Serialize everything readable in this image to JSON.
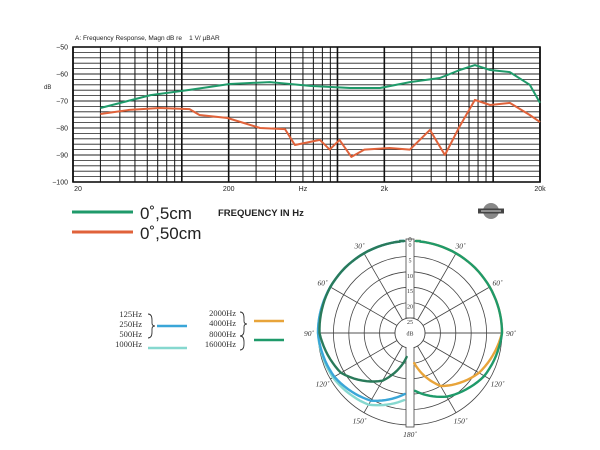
{
  "chart_data": [
    {
      "type": "line",
      "title": "A: Frequency Response, Magn dB re    1 V/ µBAR",
      "xlabel": "FREQUENCY IN Hz",
      "ylabel": "dB",
      "xscale": "log",
      "xlim": [
        20,
        20000
      ],
      "ylim": [
        -100,
        -50
      ],
      "grid": true,
      "x_tick_labels": [
        {
          "value": 20,
          "label": "20"
        },
        {
          "value": 200,
          "label": "200"
        },
        {
          "value": 600,
          "label": "Hz"
        },
        {
          "value": 2000,
          "label": "2k"
        },
        {
          "value": 20000,
          "label": "20k"
        }
      ],
      "y_ticks": [
        -50,
        -60,
        -70,
        -80,
        -90,
        -100
      ],
      "legend_placement": "bottom-left",
      "series": [
        {
          "name": "0˚,5cm",
          "color": "#1f9a6a",
          "points": [
            [
              30,
              -72.6
            ],
            [
              63,
              -67.8
            ],
            [
              112,
              -65.9
            ],
            [
              203,
              -63.7
            ],
            [
              368,
              -63
            ],
            [
              667,
              -64.4
            ],
            [
              1206,
              -65.2
            ],
            [
              1876,
              -65.2
            ],
            [
              2918,
              -63
            ],
            [
              4541,
              -61.5
            ],
            [
              6104,
              -58.5
            ],
            [
              7640,
              -56.7
            ],
            [
              9560,
              -58.5
            ],
            [
              12800,
              -59.3
            ],
            [
              17200,
              -64
            ],
            [
              20000,
              -70.7
            ]
          ]
        },
        {
          "name": "0˚,50cm",
          "color": "#e0623a",
          "points": [
            [
              30,
              -74.8
            ],
            [
              46,
              -73.3
            ],
            [
              72,
              -72.6
            ],
            [
              112,
              -73
            ],
            [
              130,
              -75.2
            ],
            [
              197,
              -76.3
            ],
            [
              318,
              -80
            ],
            [
              460,
              -80.4
            ],
            [
              533,
              -86.3
            ],
            [
              771,
              -84.4
            ],
            [
              892,
              -88
            ],
            [
              1030,
              -84.4
            ],
            [
              1228,
              -90.7
            ],
            [
              1487,
              -88
            ],
            [
              2160,
              -87.4
            ],
            [
              2918,
              -88
            ],
            [
              3925,
              -80.7
            ],
            [
              4897,
              -90
            ],
            [
              6104,
              -79.3
            ],
            [
              7640,
              -69.6
            ],
            [
              9560,
              -71.5
            ],
            [
              12800,
              -70.7
            ],
            [
              17200,
              -75.2
            ],
            [
              20000,
              -77.8
            ]
          ]
        }
      ]
    },
    {
      "type": "polar",
      "radial_unit": "dB",
      "radial_ticks": [
        "0",
        "5",
        "10",
        "15",
        "20",
        "25"
      ],
      "angle_labels": [
        "0",
        "30˚",
        "60˚",
        "90˚",
        "120˚",
        "150˚",
        "180˚"
      ],
      "grid": true,
      "legend_placement": "left",
      "legend": {
        "left_group": {
          "labels": [
            "125Hz",
            "250Hz",
            "500Hz"
          ],
          "color": "#3aa6d8"
        },
        "left_single": {
          "labels": [
            "1000Hz"
          ],
          "color": "#86d8cf"
        },
        "right_group_a": {
          "labels": [
            "2000Hz",
            "4000Hz"
          ],
          "color": "#e8a43a"
        },
        "right_group_b": {
          "labels": [
            "8000Hz",
            "16000Hz"
          ],
          "color": "#1f9a6a"
        },
        "right_labels": [
          "2000Hz",
          "4000Hz",
          "8000Hz",
          "16000Hz"
        ]
      },
      "series": [
        {
          "side": "left",
          "color": "#86d8cf",
          "points": [
            [
              0,
              0
            ],
            [
              30,
              0
            ],
            [
              60,
              0
            ],
            [
              90,
              0
            ],
            [
              120,
              1
            ],
            [
              150,
              3
            ],
            [
              175,
              8
            ]
          ]
        },
        {
          "side": "left",
          "color": "#3aa6d8",
          "points": [
            [
              0,
              0
            ],
            [
              30,
              0
            ],
            [
              60,
              0
            ],
            [
              90,
              0
            ],
            [
              120,
              1.5
            ],
            [
              150,
              4.5
            ],
            [
              175,
              10
            ]
          ]
        },
        {
          "side": "left",
          "color": "#2a7a5a",
          "points": [
            [
              0,
              0
            ],
            [
              30,
              0
            ],
            [
              60,
              0
            ],
            [
              90,
              0.5
            ],
            [
              120,
              4
            ],
            [
              150,
              12
            ],
            [
              172,
              22
            ]
          ]
        },
        {
          "side": "right",
          "color": "#e8a43a",
          "points": [
            [
              0,
              0
            ],
            [
              30,
              0
            ],
            [
              60,
              0
            ],
            [
              90,
              0
            ],
            [
              120,
              4
            ],
            [
              150,
              10
            ],
            [
              172,
              20
            ]
          ]
        },
        {
          "side": "right",
          "color": "#1f9a6a",
          "points": [
            [
              0,
              0
            ],
            [
              30,
              0
            ],
            [
              60,
              0
            ],
            [
              90,
              0
            ],
            [
              120,
              2
            ],
            [
              150,
              6
            ],
            [
              175,
              11
            ]
          ]
        }
      ]
    }
  ],
  "logo": {
    "text": "SHURE"
  }
}
